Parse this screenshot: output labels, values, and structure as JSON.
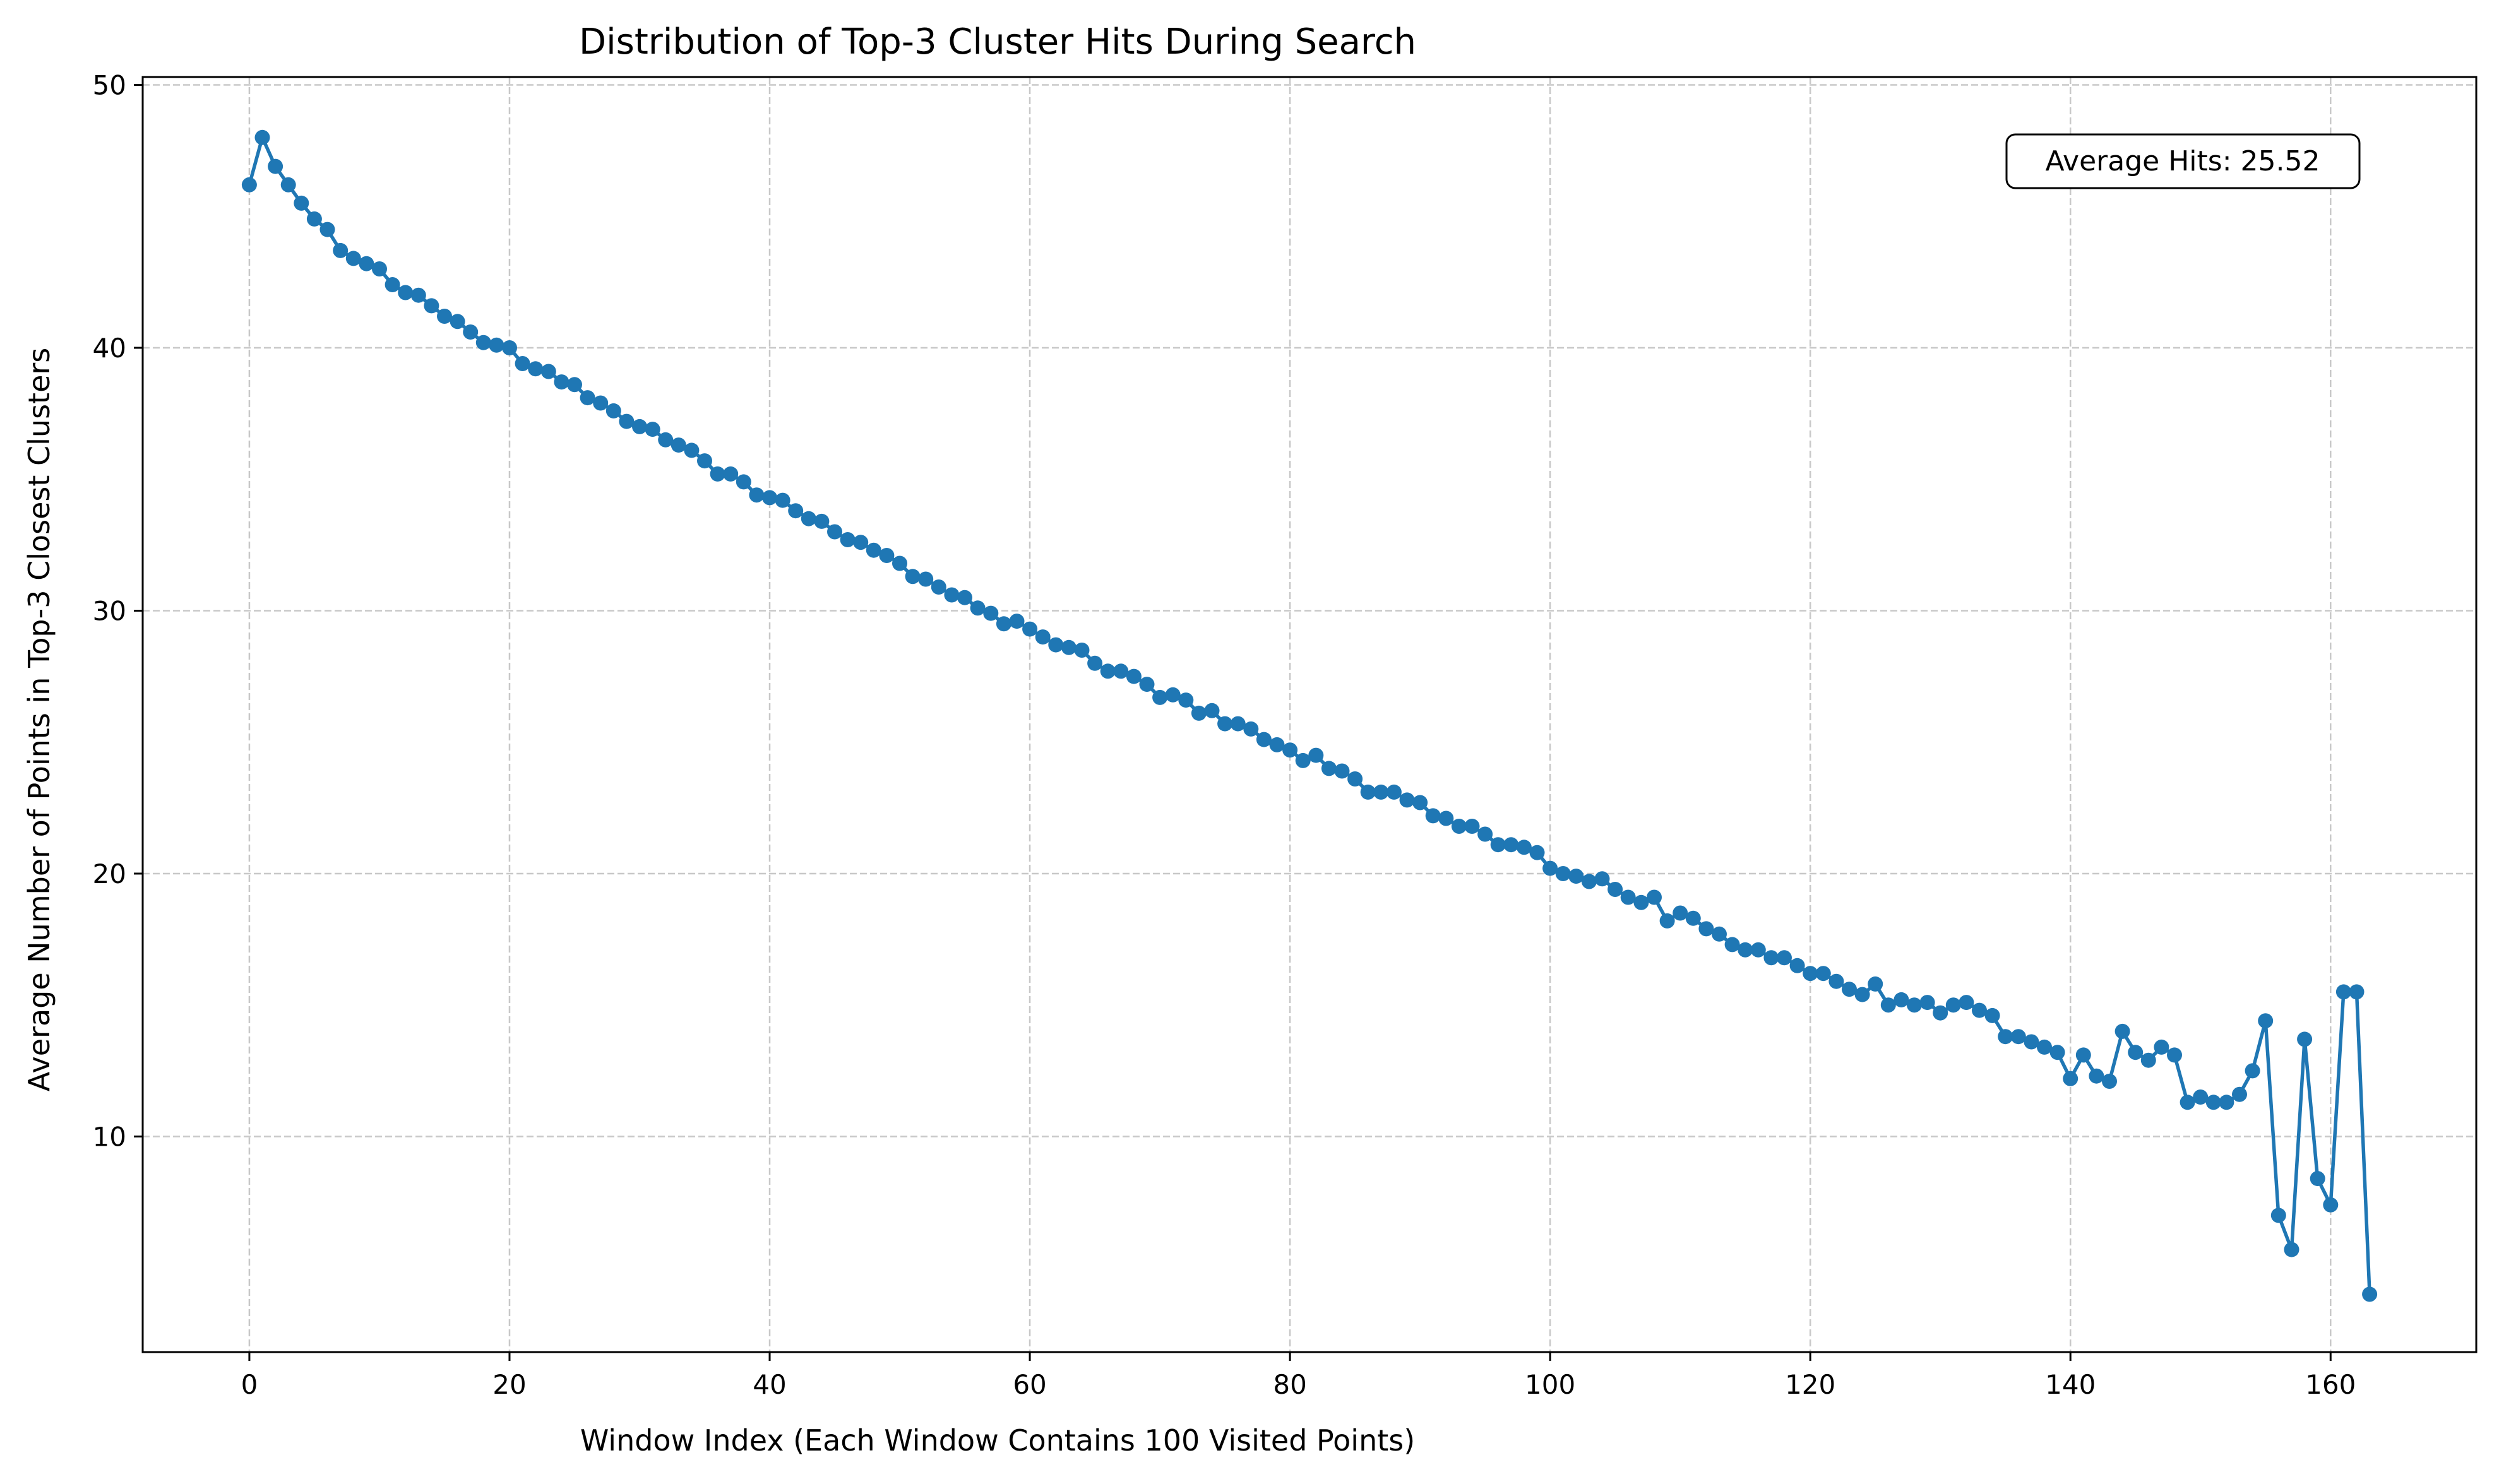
{
  "chart_data": {
    "type": "line",
    "title": "Distribution of Top-3 Cluster Hits During Search",
    "xlabel": "Window Index (Each Window Contains 100 Visited Points)",
    "ylabel": "Average Number of Points in Top-3 Closest Clusters",
    "xlim": [
      -8.2,
      171.2
    ],
    "ylim": [
      1.8,
      50.3
    ],
    "xticks": [
      0,
      20,
      40,
      60,
      80,
      100,
      120,
      140,
      160
    ],
    "yticks": [
      10,
      20,
      30,
      40,
      50
    ],
    "grid": true,
    "line_color": "#1f77b4",
    "annotation": "Average Hits: 25.52",
    "annotation_position": "top-right",
    "series": [
      {
        "x": [
          0,
          1,
          2,
          3,
          4,
          5,
          6,
          7,
          8,
          9,
          10,
          11,
          12,
          13,
          14,
          15,
          16,
          17,
          18,
          19,
          20,
          21,
          22,
          23,
          24,
          25,
          26,
          27,
          28,
          29,
          30,
          31,
          32,
          33,
          34,
          35,
          36,
          37,
          38,
          39,
          40,
          41,
          42,
          43,
          44,
          45,
          46,
          47,
          48,
          49,
          50,
          51,
          52,
          53,
          54,
          55,
          56,
          57,
          58,
          59,
          60,
          61,
          62,
          63,
          64,
          65,
          66,
          67,
          68,
          69,
          70,
          71,
          72,
          73,
          74,
          75,
          76,
          77,
          78,
          79,
          80,
          81,
          82,
          83,
          84,
          85,
          86,
          87,
          88,
          89,
          90,
          91,
          92,
          93,
          94,
          95,
          96,
          97,
          98,
          99,
          100,
          101,
          102,
          103,
          104,
          105,
          106,
          107,
          108,
          109,
          110,
          111,
          112,
          113,
          114,
          115,
          116,
          117,
          118,
          119,
          120,
          121,
          122,
          123,
          124,
          125,
          126,
          127,
          128,
          129,
          130,
          131,
          132,
          133,
          134,
          135,
          136,
          137,
          138,
          139,
          140,
          141,
          142,
          143,
          144,
          145,
          146,
          147,
          148,
          149,
          150,
          151,
          152,
          153,
          154,
          155,
          156,
          157,
          158,
          159,
          160,
          161,
          162,
          163
        ],
        "y": [
          46.2,
          48.0,
          46.9,
          46.2,
          45.5,
          44.9,
          44.5,
          43.7,
          43.4,
          43.2,
          43.0,
          42.4,
          42.1,
          42.0,
          41.6,
          41.2,
          41.0,
          40.6,
          40.2,
          40.1,
          40.0,
          39.4,
          39.2,
          39.1,
          38.7,
          38.6,
          38.1,
          37.9,
          37.6,
          37.2,
          37.0,
          36.9,
          36.5,
          36.3,
          36.1,
          35.7,
          35.2,
          35.2,
          34.9,
          34.4,
          34.3,
          34.2,
          33.8,
          33.5,
          33.4,
          33.0,
          32.7,
          32.6,
          32.3,
          32.1,
          31.8,
          31.3,
          31.2,
          30.9,
          30.6,
          30.5,
          30.1,
          29.9,
          29.5,
          29.6,
          29.3,
          29.0,
          28.7,
          28.6,
          28.5,
          28.0,
          27.7,
          27.7,
          27.5,
          27.2,
          26.7,
          26.8,
          26.6,
          26.1,
          26.2,
          25.7,
          25.7,
          25.5,
          25.1,
          24.9,
          24.7,
          24.3,
          24.5,
          24.0,
          23.9,
          23.6,
          23.1,
          23.1,
          23.1,
          22.8,
          22.7,
          22.2,
          22.1,
          21.8,
          21.8,
          21.5,
          21.1,
          21.1,
          21.0,
          20.8,
          20.2,
          20.0,
          19.9,
          19.7,
          19.8,
          19.4,
          19.1,
          18.9,
          19.1,
          18.2,
          18.5,
          18.3,
          17.9,
          17.7,
          17.3,
          17.1,
          17.1,
          16.8,
          16.8,
          16.5,
          16.2,
          16.2,
          15.9,
          15.6,
          15.4,
          15.8,
          15.0,
          15.2,
          15.0,
          15.1,
          14.7,
          15.0,
          15.1,
          14.8,
          14.6,
          13.8,
          13.8,
          13.6,
          13.4,
          13.2,
          12.2,
          13.1,
          12.3,
          12.1,
          14.0,
          13.2,
          12.9,
          13.4,
          13.1,
          11.3,
          11.5,
          11.3,
          11.3,
          11.6,
          12.5,
          14.4,
          7.0,
          5.7,
          13.7,
          8.4,
          7.4,
          15.5,
          15.5,
          4.0
        ]
      }
    ]
  }
}
